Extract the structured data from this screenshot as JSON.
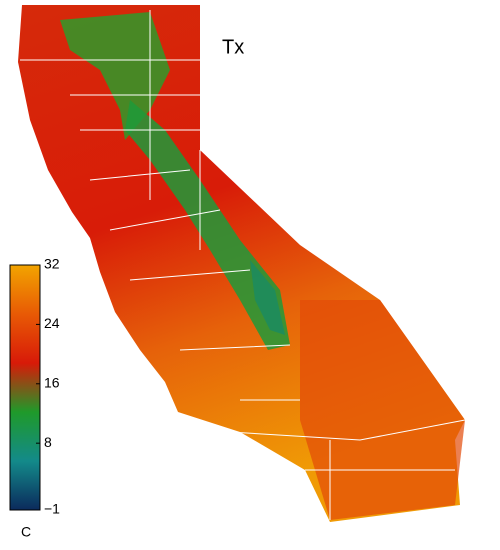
{
  "map": {
    "title": "Tx",
    "colorbar": {
      "range": [
        -1,
        32
      ],
      "ticks": [
        32,
        24,
        16,
        8,
        {
          "value": -1,
          "label": "−1"
        }
      ],
      "unit": "C",
      "colors": [
        "#0b2a5c",
        "#138a8a",
        "#1f9a2a",
        "#d81a08",
        "#e85a05",
        "#f2a400"
      ]
    }
  }
}
